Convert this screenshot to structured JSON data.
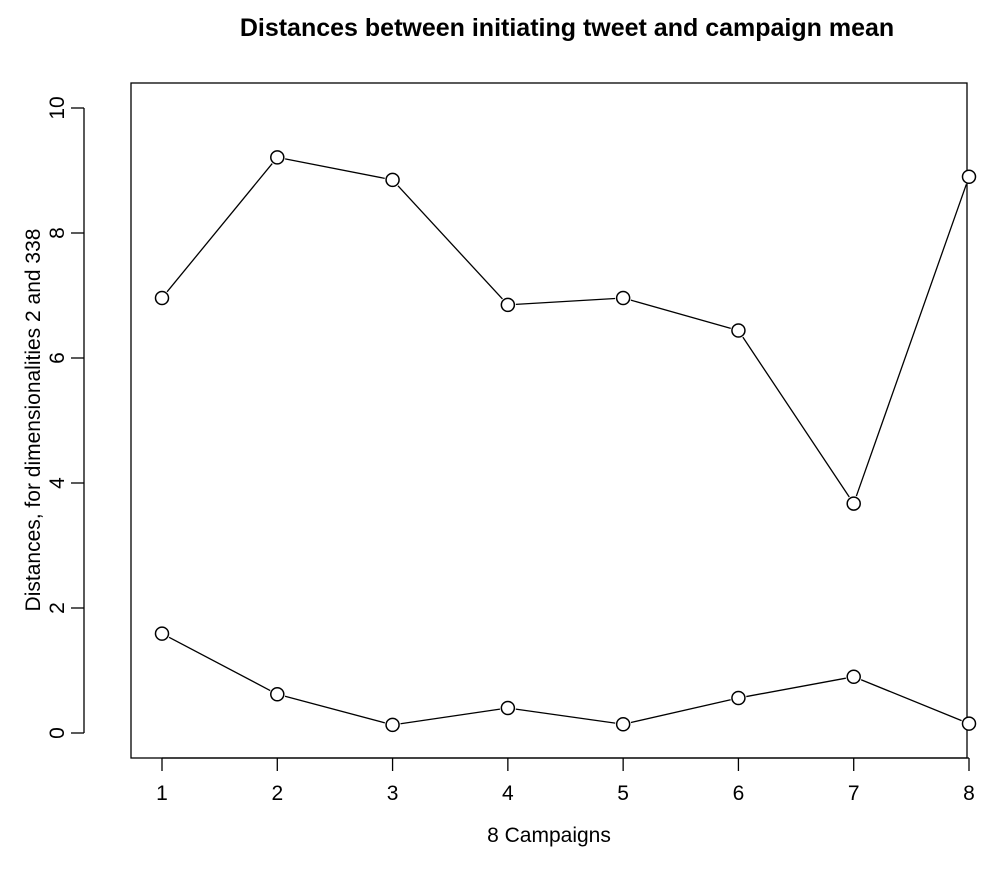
{
  "chart_data": {
    "type": "line",
    "title": "Distances between initiating tweet and campaign mean",
    "xlabel": "8 Campaigns",
    "ylabel": "Distances, for dimensionalities 2 and 338",
    "x": [
      1,
      2,
      3,
      4,
      5,
      6,
      7,
      8
    ],
    "x_ticks": [
      "1",
      "2",
      "3",
      "4",
      "5",
      "6",
      "7",
      "8"
    ],
    "y_ticks": [
      "0",
      "2",
      "4",
      "6",
      "8",
      "10"
    ],
    "ylim": [
      0,
      10
    ],
    "xlim": [
      0.72,
      8.28
    ],
    "grid": false,
    "legend": "none",
    "marker": "open-circle",
    "color": "#000000",
    "series": [
      {
        "values": [
          6.96,
          9.21,
          8.85,
          6.85,
          6.96,
          6.44,
          3.67,
          8.9
        ]
      },
      {
        "values": [
          1.59,
          0.62,
          0.13,
          0.4,
          0.14,
          0.56,
          0.9,
          0.15
        ]
      }
    ]
  }
}
